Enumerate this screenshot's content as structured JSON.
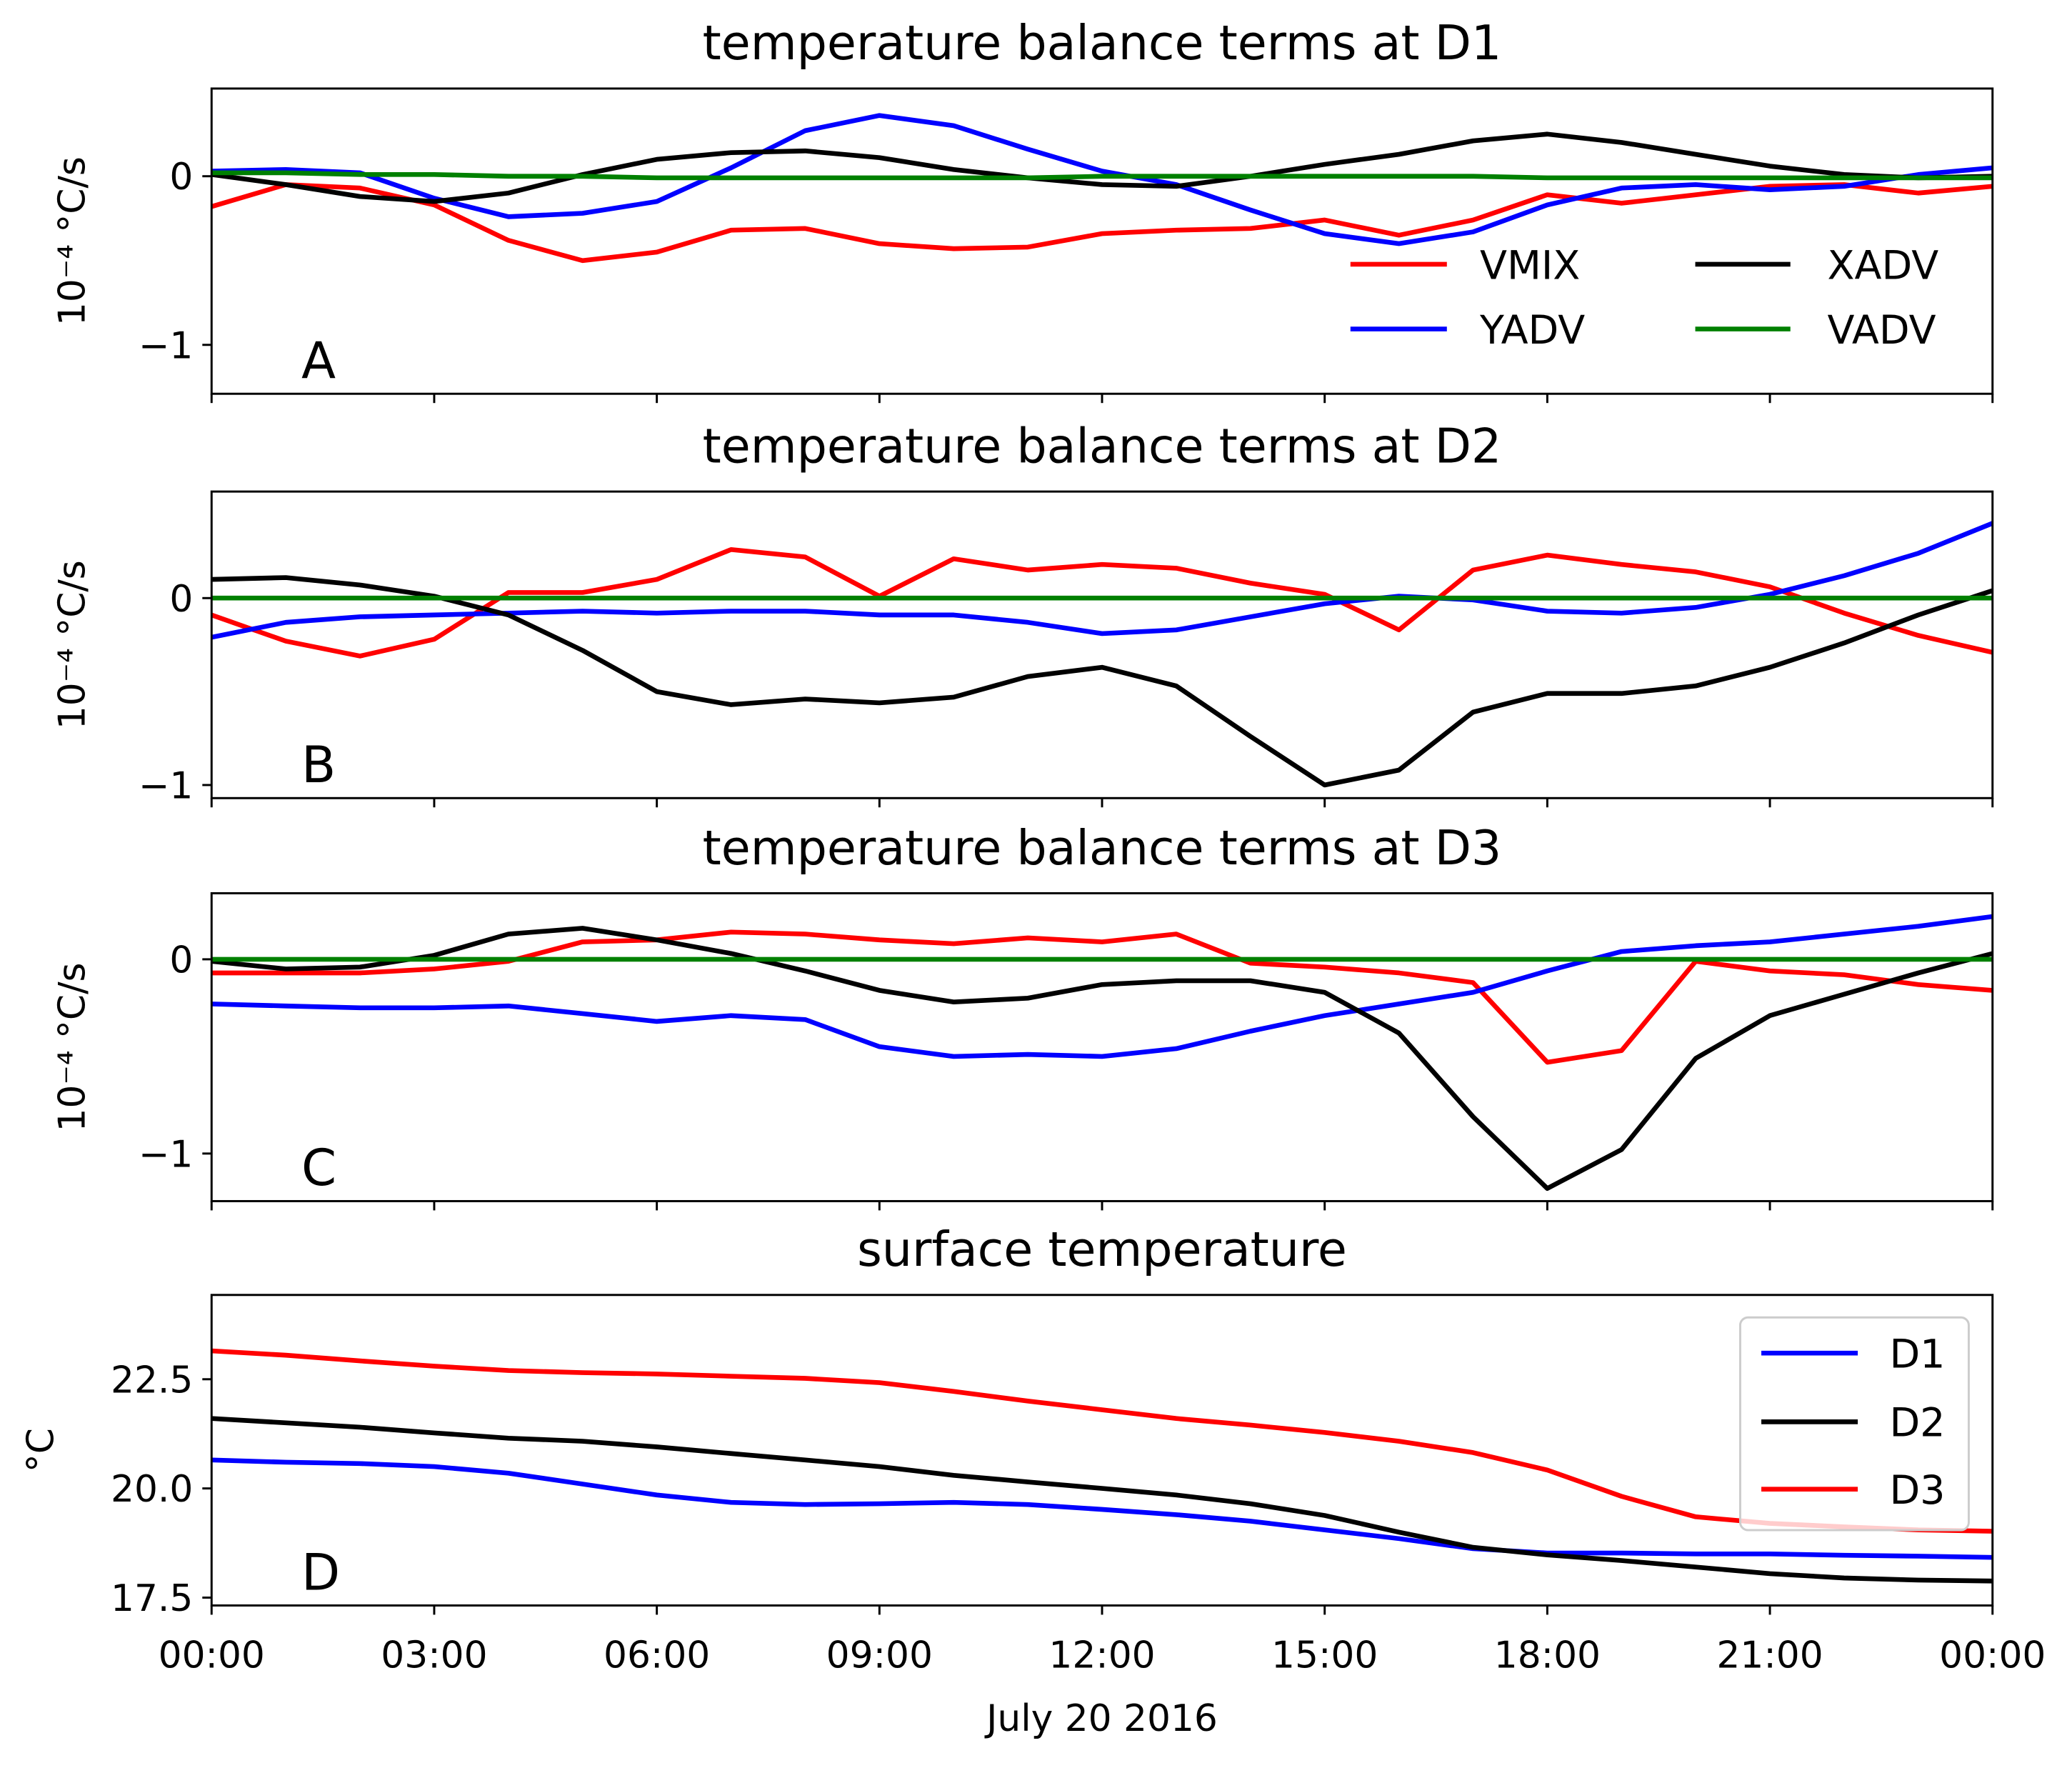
{
  "chart_data": [
    {
      "type": "line",
      "panel_label": "A",
      "title": "temperature balance terms at D1",
      "ylabel": "10⁻⁴ °C/s",
      "xlabel": "",
      "xlim": [
        0,
        24
      ],
      "ylim": [
        -1.29,
        0.52
      ],
      "yticks": [
        0,
        -1
      ],
      "ytick_labels": [
        "0",
        "−1"
      ],
      "xticks": [
        0,
        3,
        6,
        9,
        12,
        15,
        18,
        21,
        24
      ],
      "xtick_labels": [],
      "grid": false,
      "legend": {
        "location": "lower right",
        "ncol": 2,
        "frame": false
      },
      "x": [
        0,
        1,
        2,
        3,
        4,
        5,
        6,
        7,
        8,
        9,
        10,
        11,
        12,
        13,
        14,
        15,
        16,
        17,
        18,
        19,
        20,
        21,
        22,
        23,
        24
      ],
      "series": [
        {
          "name": "VMIX",
          "color": "#ff0000",
          "values": [
            -0.18,
            -0.05,
            -0.07,
            -0.17,
            -0.38,
            -0.5,
            -0.45,
            -0.32,
            -0.31,
            -0.4,
            -0.43,
            -0.42,
            -0.34,
            -0.32,
            -0.31,
            -0.26,
            -0.35,
            -0.26,
            -0.11,
            -0.16,
            -0.11,
            -0.06,
            -0.05,
            -0.1,
            -0.06
          ]
        },
        {
          "name": "YADV",
          "color": "#0000ff",
          "values": [
            0.03,
            0.04,
            0.02,
            -0.13,
            -0.24,
            -0.22,
            -0.15,
            0.05,
            0.27,
            0.36,
            0.3,
            0.16,
            0.03,
            -0.05,
            -0.2,
            -0.34,
            -0.4,
            -0.33,
            -0.17,
            -0.07,
            -0.05,
            -0.08,
            -0.06,
            0.01,
            0.05
          ]
        },
        {
          "name": "XADV",
          "color": "#000000",
          "values": [
            0.01,
            -0.05,
            -0.12,
            -0.15,
            -0.1,
            0.01,
            0.1,
            0.14,
            0.15,
            0.11,
            0.04,
            -0.01,
            -0.05,
            -0.06,
            0.0,
            0.07,
            0.13,
            0.21,
            0.25,
            0.2,
            0.13,
            0.06,
            0.01,
            -0.01,
            0.0
          ]
        },
        {
          "name": "VADV",
          "color": "#008000",
          "values": [
            0.02,
            0.02,
            0.01,
            0.01,
            0.0,
            0.0,
            -0.01,
            -0.01,
            -0.01,
            -0.01,
            -0.01,
            -0.01,
            0.0,
            0.0,
            0.0,
            0.0,
            0.0,
            0.0,
            -0.01,
            -0.01,
            -0.01,
            -0.01,
            -0.01,
            -0.01,
            -0.01
          ]
        }
      ]
    },
    {
      "type": "line",
      "panel_label": "B",
      "title": "temperature balance terms at D2",
      "ylabel": "10⁻⁴ °C/s",
      "xlabel": "",
      "xlim": [
        0,
        24
      ],
      "ylim": [
        -1.07,
        0.57
      ],
      "yticks": [
        0,
        -1
      ],
      "ytick_labels": [
        "0",
        "−1"
      ],
      "xticks": [
        0,
        3,
        6,
        9,
        12,
        15,
        18,
        21,
        24
      ],
      "xtick_labels": [],
      "grid": false,
      "legend": null,
      "x": [
        0,
        1,
        2,
        3,
        4,
        5,
        6,
        7,
        8,
        9,
        10,
        11,
        12,
        13,
        14,
        15,
        16,
        17,
        18,
        19,
        20,
        21,
        22,
        23,
        24
      ],
      "series": [
        {
          "name": "VMIX",
          "color": "#ff0000",
          "values": [
            -0.09,
            -0.23,
            -0.31,
            -0.22,
            0.03,
            0.03,
            0.1,
            0.26,
            0.22,
            0.01,
            0.21,
            0.15,
            0.18,
            0.16,
            0.08,
            0.02,
            -0.17,
            0.15,
            0.23,
            0.18,
            0.14,
            0.06,
            -0.08,
            -0.2,
            -0.29
          ]
        },
        {
          "name": "YADV",
          "color": "#0000ff",
          "values": [
            -0.21,
            -0.13,
            -0.1,
            -0.09,
            -0.08,
            -0.07,
            -0.08,
            -0.07,
            -0.07,
            -0.09,
            -0.09,
            -0.13,
            -0.19,
            -0.17,
            -0.1,
            -0.03,
            0.01,
            -0.01,
            -0.07,
            -0.08,
            -0.05,
            0.02,
            0.12,
            0.24,
            0.4
          ]
        },
        {
          "name": "XADV",
          "color": "#000000",
          "values": [
            0.1,
            0.11,
            0.07,
            0.01,
            -0.09,
            -0.28,
            -0.5,
            -0.57,
            -0.54,
            -0.56,
            -0.53,
            -0.42,
            -0.37,
            -0.47,
            -0.74,
            -1.0,
            -0.92,
            -0.61,
            -0.51,
            -0.51,
            -0.47,
            -0.37,
            -0.24,
            -0.09,
            0.04
          ]
        },
        {
          "name": "VADV",
          "color": "#008000",
          "values": [
            0,
            0,
            0,
            0,
            0,
            0,
            0,
            0,
            0,
            0,
            0,
            0,
            0,
            0,
            0,
            0,
            0,
            0,
            0,
            0,
            0,
            0,
            0,
            0,
            0
          ]
        }
      ]
    },
    {
      "type": "line",
      "panel_label": "C",
      "title": "temperature balance terms at D3",
      "ylabel": "10⁻⁴ °C/s",
      "xlabel": "",
      "xlim": [
        0,
        24
      ],
      "ylim": [
        -1.245,
        0.34
      ],
      "yticks": [
        0,
        -1
      ],
      "ytick_labels": [
        "0",
        "−1"
      ],
      "xticks": [
        0,
        3,
        6,
        9,
        12,
        15,
        18,
        21,
        24
      ],
      "xtick_labels": [],
      "grid": false,
      "legend": null,
      "x": [
        0,
        1,
        2,
        3,
        4,
        5,
        6,
        7,
        8,
        9,
        10,
        11,
        12,
        13,
        14,
        15,
        16,
        17,
        18,
        19,
        20,
        21,
        22,
        23,
        24
      ],
      "series": [
        {
          "name": "VMIX",
          "color": "#ff0000",
          "values": [
            -0.07,
            -0.07,
            -0.07,
            -0.05,
            -0.01,
            0.09,
            0.1,
            0.14,
            0.13,
            0.1,
            0.08,
            0.11,
            0.09,
            0.13,
            -0.02,
            -0.04,
            -0.07,
            -0.12,
            -0.53,
            -0.47,
            -0.01,
            -0.06,
            -0.08,
            -0.13,
            -0.16
          ]
        },
        {
          "name": "YADV",
          "color": "#0000ff",
          "values": [
            -0.23,
            -0.24,
            -0.25,
            -0.25,
            -0.24,
            -0.28,
            -0.32,
            -0.29,
            -0.31,
            -0.45,
            -0.5,
            -0.49,
            -0.5,
            -0.46,
            -0.37,
            -0.29,
            -0.23,
            -0.17,
            -0.06,
            0.04,
            0.07,
            0.09,
            0.13,
            0.17,
            0.22
          ]
        },
        {
          "name": "XADV",
          "color": "#000000",
          "values": [
            -0.01,
            -0.05,
            -0.04,
            0.02,
            0.13,
            0.16,
            0.1,
            0.03,
            -0.06,
            -0.16,
            -0.22,
            -0.2,
            -0.13,
            -0.11,
            -0.11,
            -0.17,
            -0.38,
            -0.81,
            -1.18,
            -0.98,
            -0.51,
            -0.29,
            -0.18,
            -0.07,
            0.03
          ]
        },
        {
          "name": "VADV",
          "color": "#008000",
          "values": [
            0,
            0,
            0,
            0,
            0,
            0,
            0,
            0,
            0,
            0,
            0,
            0,
            0,
            0,
            0,
            0,
            0,
            0,
            0,
            0,
            0,
            0,
            0,
            0,
            0
          ]
        }
      ]
    },
    {
      "type": "line",
      "panel_label": "D",
      "title": "surface temperature",
      "ylabel": "°C",
      "xlabel": "July 20 2016",
      "xlim": [
        0,
        24
      ],
      "ylim": [
        17.32,
        24.43
      ],
      "yticks": [
        17.5,
        20.0,
        22.5
      ],
      "ytick_labels": [
        "17.5",
        "20.0",
        "22.5"
      ],
      "xticks": [
        0,
        3,
        6,
        9,
        12,
        15,
        18,
        21,
        24
      ],
      "xtick_labels": [
        "00:00",
        "03:00",
        "06:00",
        "09:00",
        "12:00",
        "15:00",
        "18:00",
        "21:00",
        "00:00"
      ],
      "grid": false,
      "legend": {
        "location": "upper right",
        "ncol": 1,
        "frame": true
      },
      "x": [
        0,
        1,
        2,
        3,
        4,
        5,
        6,
        7,
        8,
        9,
        10,
        11,
        12,
        13,
        14,
        15,
        16,
        17,
        18,
        19,
        20,
        21,
        22,
        23,
        24
      ],
      "series": [
        {
          "name": "D1",
          "color": "#0000ff",
          "values": [
            20.65,
            20.6,
            20.57,
            20.5,
            20.35,
            20.1,
            19.85,
            19.68,
            19.63,
            19.65,
            19.68,
            19.63,
            19.52,
            19.4,
            19.25,
            19.05,
            18.85,
            18.62,
            18.52,
            18.52,
            18.5,
            18.5,
            18.47,
            18.45,
            18.42
          ]
        },
        {
          "name": "D2",
          "color": "#000000",
          "values": [
            21.6,
            21.5,
            21.4,
            21.27,
            21.15,
            21.08,
            20.95,
            20.8,
            20.65,
            20.5,
            20.3,
            20.15,
            20.0,
            19.85,
            19.65,
            19.38,
            19.0,
            18.65,
            18.48,
            18.35,
            18.2,
            18.05,
            17.95,
            17.9,
            17.88
          ]
        },
        {
          "name": "D3",
          "color": "#ff0000",
          "values": [
            23.15,
            23.05,
            22.92,
            22.8,
            22.7,
            22.65,
            22.62,
            22.57,
            22.52,
            22.42,
            22.22,
            22.0,
            21.8,
            21.6,
            21.45,
            21.28,
            21.08,
            20.82,
            20.42,
            19.82,
            19.35,
            19.2,
            19.12,
            19.05,
            19.02
          ]
        }
      ]
    }
  ]
}
